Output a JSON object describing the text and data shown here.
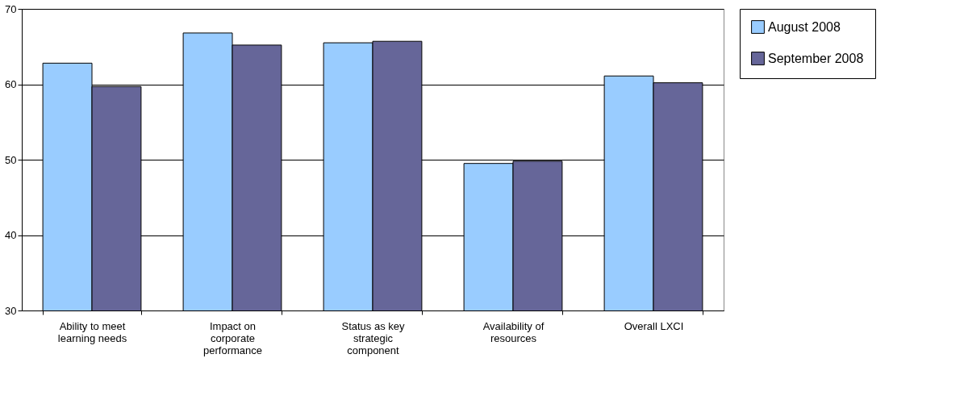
{
  "chart_data": {
    "type": "bar",
    "categories": [
      "Ability to meet learning needs",
      "Impact on corporate performance",
      "Status as key strategic component",
      "Availability of resources",
      "Overall LXCI"
    ],
    "series": [
      {
        "name": "August 2008",
        "color": "#99ccff",
        "values": [
          62.8,
          66.8,
          65.5,
          49.5,
          61.1
        ]
      },
      {
        "name": "September 2008",
        "color": "#666699",
        "values": [
          59.7,
          65.2,
          65.7,
          49.8,
          60.2
        ]
      }
    ],
    "ylim": [
      30,
      70
    ],
    "yticks": [
      30,
      40,
      50,
      60,
      70
    ],
    "grid": "y",
    "legend": "right"
  }
}
